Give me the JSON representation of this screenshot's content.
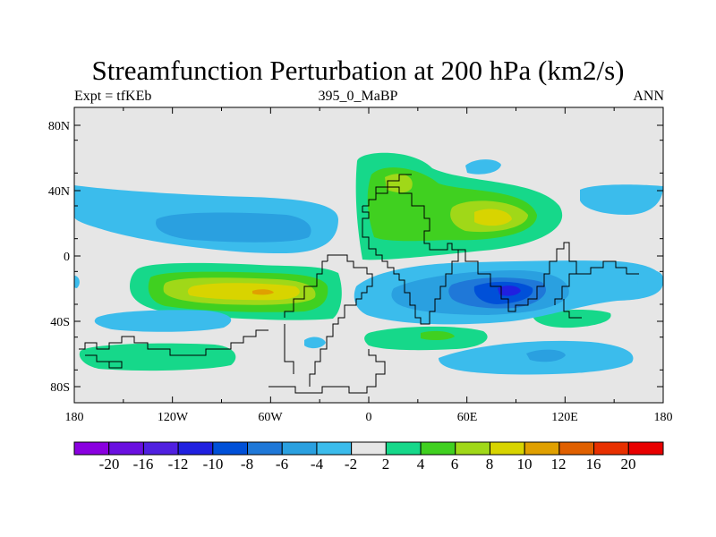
{
  "title": "Streamfunction Perturbation at 200 hPa (km2/s)",
  "subtitle_left": "Expt = tfKEb",
  "subtitle_center": "395_0_MaBP",
  "subtitle_right": "ANN",
  "x_tick_labels": [
    "180",
    "120W",
    "60W",
    "0",
    "60E",
    "120E",
    "180"
  ],
  "y_tick_labels": [
    "80N",
    "40N",
    "0",
    "40S",
    "80S"
  ],
  "colorbar": {
    "labels": [
      "-20",
      "-16",
      "-12",
      "-10",
      "-8",
      "-6",
      "-4",
      "-2",
      "2",
      "4",
      "6",
      "8",
      "10",
      "12",
      "16",
      "20"
    ],
    "colors": [
      "#8a00e0",
      "#6a10e0",
      "#5020e0",
      "#2020e0",
      "#0050d8",
      "#1f78d8",
      "#2aa0e0",
      "#3bbcec",
      "#e6e6e6",
      "#16d88a",
      "#40d020",
      "#a0d818",
      "#d8d400",
      "#e0a000",
      "#e06000",
      "#e83000",
      "#e80000"
    ]
  },
  "chart_data": {
    "type": "heatmap",
    "title": "Streamfunction Perturbation at 200 hPa (km2/s)",
    "xlabel": "",
    "ylabel": "",
    "xlim": [
      -180,
      180
    ],
    "ylim": [
      -90,
      90
    ],
    "contour_levels": [
      -20,
      -16,
      -12,
      -10,
      -8,
      -6,
      -4,
      -2,
      2,
      4,
      6,
      8,
      10,
      12,
      16,
      20
    ],
    "anomalies": [
      {
        "lon": 15,
        "lat": 40,
        "peak": 6
      },
      {
        "lon": 55,
        "lat": 22,
        "peak": 10
      },
      {
        "lon": -60,
        "lat": -22,
        "peak": 10
      },
      {
        "lon": -155,
        "lat": -60,
        "peak": 4
      },
      {
        "lon": 35,
        "lat": -48,
        "peak": 6
      },
      {
        "lon": 85,
        "lat": -22,
        "peak": -12
      },
      {
        "lon": -80,
        "lat": 18,
        "peak": -6
      },
      {
        "lon": 70,
        "lat": 55,
        "peak": -4
      },
      {
        "lon": 100,
        "lat": -62,
        "peak": -4
      },
      {
        "lon": 90,
        "lat": -38,
        "peak": 4
      }
    ]
  }
}
